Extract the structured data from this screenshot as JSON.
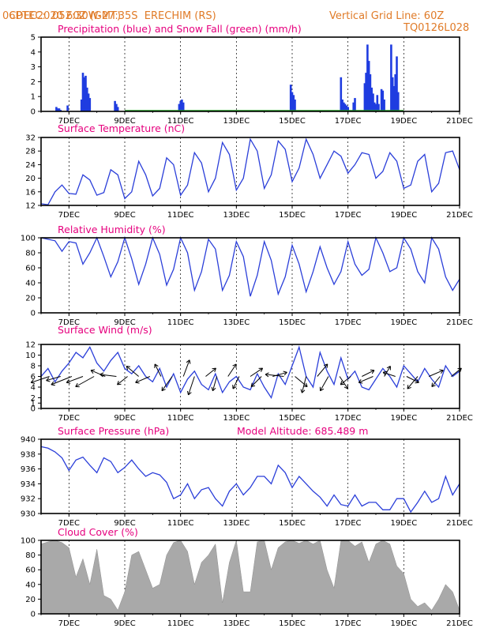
{
  "header": {
    "source": "CPTEC:",
    "coords": "052:30W-27:35S",
    "station": "ERECHIM (RS)",
    "run": "06DEC2020 60Z (GMT)",
    "grid_note": "Vertical Grid Line: 60Z",
    "model": "TQ0126L028"
  },
  "colors": {
    "line": "#2b3fd9",
    "bar": "#1f3ce0",
    "snow": "#22a022",
    "cloud": "#a9a9a9",
    "title": "#e6007e",
    "header": "#e07b28"
  },
  "x_ticks": [
    "7DEC",
    "9DEC",
    "11DEC",
    "13DEC",
    "15DEC",
    "17DEC",
    "19DEC",
    "21DEC"
  ],
  "chart_data": [
    {
      "id": "precip",
      "type": "bar",
      "title": "Precipitation (blue) and Snow Fall (green) (mm/h)",
      "ylim": [
        0,
        5
      ],
      "yticks": [
        0,
        1,
        2,
        3,
        4,
        5
      ],
      "series": [
        {
          "name": "Precipitation",
          "x": [
            6.55,
            6.6,
            6.65,
            6.7,
            6.95,
            7.45,
            7.5,
            7.55,
            7.6,
            7.65,
            7.7,
            7.75,
            8.65,
            8.7,
            8.75,
            10.95,
            11.0,
            11.05,
            11.1,
            14.95,
            15.0,
            15.05,
            15.1,
            16.75,
            16.8,
            16.85,
            16.9,
            16.95,
            17.0,
            17.2,
            17.25,
            17.6,
            17.65,
            17.7,
            17.75,
            17.8,
            17.85,
            17.9,
            17.95,
            18.0,
            18.05,
            18.1,
            18.2,
            18.25,
            18.3,
            18.55,
            18.6,
            18.65,
            18.7,
            18.75,
            18.8
          ],
          "values": [
            0.3,
            0.2,
            0.2,
            0.1,
            0.4,
            0.8,
            2.6,
            2.3,
            2.4,
            1.6,
            1.2,
            0.9,
            0.7,
            0.5,
            0.3,
            0.5,
            0.7,
            0.8,
            0.6,
            1.8,
            1.3,
            1.1,
            0.8,
            2.3,
            0.8,
            0.6,
            0.5,
            0.4,
            0.3,
            0.6,
            0.9,
            1.9,
            2.6,
            4.5,
            3.4,
            2.5,
            1.6,
            1.2,
            0.6,
            0.5,
            1.1,
            0.5,
            1.5,
            1.4,
            0.8,
            4.5,
            2.3,
            1.7,
            2.5,
            3.7,
            1.3
          ]
        }
      ]
    },
    {
      "id": "temp",
      "type": "line",
      "title": "Surface Temperature (nC)",
      "ylim": [
        12,
        32
      ],
      "yticks": [
        12,
        16,
        20,
        24,
        28,
        32
      ],
      "series": [
        {
          "name": "Temperature",
          "x": [
            6.0,
            6.25,
            6.5,
            6.75,
            7.0,
            7.25,
            7.5,
            7.75,
            8.0,
            8.25,
            8.5,
            8.75,
            9.0,
            9.25,
            9.5,
            9.75,
            10.0,
            10.25,
            10.5,
            10.75,
            11.0,
            11.25,
            11.5,
            11.75,
            12.0,
            12.25,
            12.5,
            12.75,
            13.0,
            13.25,
            13.5,
            13.75,
            14.0,
            14.25,
            14.5,
            14.75,
            15.0,
            15.25,
            15.5,
            15.75,
            16.0,
            16.25,
            16.5,
            16.75,
            17.0,
            17.25,
            17.5,
            17.75,
            18.0,
            18.25,
            18.5,
            18.75,
            19.0,
            19.25,
            19.5,
            19.75,
            20.0,
            20.25,
            20.5,
            20.75,
            21.0
          ],
          "values": [
            12.5,
            12.2,
            16.0,
            18.0,
            15.5,
            15.3,
            21.0,
            19.5,
            15.0,
            15.8,
            22.5,
            21.0,
            14.0,
            16.0,
            25.0,
            21.0,
            14.8,
            17.0,
            26.0,
            24.0,
            15.0,
            18.0,
            27.5,
            24.5,
            16.0,
            20.0,
            30.5,
            27.0,
            16.5,
            20.0,
            31.5,
            28.0,
            17.0,
            21.0,
            31.0,
            28.5,
            19.0,
            23.0,
            31.5,
            27.0,
            20.0,
            24.0,
            28.0,
            26.5,
            21.5,
            24.0,
            27.5,
            27.0,
            20.0,
            22.0,
            27.5,
            25.0,
            17.0,
            18.0,
            25.0,
            27.0,
            16.0,
            18.5,
            27.5,
            28.0,
            22.5
          ]
        }
      ]
    },
    {
      "id": "rh",
      "type": "line",
      "title": "Relative Humidity (%)",
      "ylim": [
        0,
        100
      ],
      "yticks": [
        0,
        20,
        40,
        60,
        80,
        100
      ],
      "series": [
        {
          "name": "Relative Humidity",
          "x": [
            6.0,
            6.25,
            6.5,
            6.75,
            7.0,
            7.25,
            7.5,
            7.75,
            8.0,
            8.25,
            8.5,
            8.75,
            9.0,
            9.25,
            9.5,
            9.75,
            10.0,
            10.25,
            10.5,
            10.75,
            11.0,
            11.25,
            11.5,
            11.75,
            12.0,
            12.25,
            12.5,
            12.75,
            13.0,
            13.25,
            13.5,
            13.75,
            14.0,
            14.25,
            14.5,
            14.75,
            15.0,
            15.25,
            15.5,
            15.75,
            16.0,
            16.25,
            16.5,
            16.75,
            17.0,
            17.25,
            17.5,
            17.75,
            18.0,
            18.25,
            18.5,
            18.75,
            19.0,
            19.25,
            19.5,
            19.75,
            20.0,
            20.25,
            20.5,
            20.75,
            21.0
          ],
          "values": [
            100,
            98,
            96,
            82,
            95,
            93,
            65,
            80,
            100,
            75,
            48,
            68,
            100,
            72,
            38,
            65,
            100,
            78,
            37,
            58,
            100,
            80,
            30,
            55,
            98,
            85,
            30,
            50,
            95,
            75,
            22,
            50,
            95,
            70,
            25,
            48,
            90,
            65,
            28,
            55,
            88,
            60,
            38,
            55,
            95,
            65,
            50,
            58,
            100,
            80,
            55,
            60,
            100,
            85,
            55,
            40,
            100,
            85,
            48,
            30,
            45
          ]
        }
      ]
    },
    {
      "id": "wind",
      "type": "line",
      "title": "Surface Wind (m/s)",
      "ylim": [
        0,
        12
      ],
      "yticks": [
        0,
        1,
        2,
        4,
        6,
        8,
        10,
        12
      ],
      "series": [
        {
          "name": "Wind speed",
          "x": [
            6.0,
            6.25,
            6.5,
            6.75,
            7.0,
            7.25,
            7.5,
            7.75,
            8.0,
            8.25,
            8.5,
            8.75,
            9.0,
            9.25,
            9.5,
            9.75,
            10.0,
            10.25,
            10.5,
            10.75,
            11.0,
            11.25,
            11.5,
            11.75,
            12.0,
            12.25,
            12.5,
            12.75,
            13.0,
            13.25,
            13.5,
            13.75,
            14.0,
            14.25,
            14.5,
            14.75,
            15.0,
            15.25,
            15.5,
            15.75,
            16.0,
            16.25,
            16.5,
            16.75,
            17.0,
            17.25,
            17.5,
            17.75,
            18.0,
            18.25,
            18.5,
            18.75,
            19.0,
            19.25,
            19.5,
            19.75,
            20.0,
            20.25,
            20.5,
            20.75,
            21.0
          ],
          "values": [
            6.0,
            7.5,
            5.0,
            7.0,
            8.5,
            10.5,
            9.5,
            11.5,
            8.5,
            7.0,
            9.0,
            10.5,
            7.5,
            6.5,
            8.0,
            6.0,
            5.0,
            7.5,
            4.0,
            6.5,
            3.0,
            5.5,
            7.0,
            4.5,
            3.5,
            6.5,
            3.0,
            5.0,
            6.0,
            4.0,
            3.5,
            6.5,
            4.0,
            2.0,
            6.5,
            4.5,
            8.0,
            11.5,
            6.0,
            4.0,
            10.5,
            7.0,
            4.5,
            9.5,
            5.5,
            7.0,
            4.0,
            3.5,
            5.5,
            7.5,
            6.0,
            4.0,
            8.0,
            6.5,
            5.0,
            7.5,
            5.5,
            4.0,
            8.0,
            6.0,
            7.0
          ]
        }
      ],
      "wind_vectors": [
        {
          "x": 6.3,
          "u": -0.9,
          "v": -0.3
        },
        {
          "x": 6.7,
          "u": -0.7,
          "v": -0.2
        },
        {
          "x": 7.1,
          "u": -1.0,
          "v": -0.4
        },
        {
          "x": 7.5,
          "u": -0.8,
          "v": -0.3
        },
        {
          "x": 7.9,
          "u": -0.9,
          "v": -0.5
        },
        {
          "x": 8.3,
          "u": -0.7,
          "v": 0.3
        },
        {
          "x": 8.7,
          "u": -0.8,
          "v": 0.1
        },
        {
          "x": 9.1,
          "u": -0.5,
          "v": -0.4
        },
        {
          "x": 9.5,
          "u": -0.6,
          "v": 0.5
        },
        {
          "x": 9.9,
          "u": -0.7,
          "v": -0.3
        },
        {
          "x": 10.3,
          "u": -0.3,
          "v": 0.6
        },
        {
          "x": 10.7,
          "u": -0.5,
          "v": -0.7
        },
        {
          "x": 11.1,
          "u": 0.3,
          "v": 0.8
        },
        {
          "x": 11.5,
          "u": -0.3,
          "v": -0.9
        },
        {
          "x": 11.9,
          "u": 0.5,
          "v": 0.4
        },
        {
          "x": 12.3,
          "u": -0.2,
          "v": -0.7
        },
        {
          "x": 12.7,
          "u": 0.4,
          "v": 0.6
        },
        {
          "x": 13.1,
          "u": -0.3,
          "v": -0.6
        },
        {
          "x": 13.5,
          "u": 0.6,
          "v": 0.4
        },
        {
          "x": 13.9,
          "u": -0.5,
          "v": -0.5
        },
        {
          "x": 14.3,
          "u": 0.7,
          "v": 0.2
        },
        {
          "x": 14.7,
          "u": -0.9,
          "v": 0.1
        },
        {
          "x": 15.1,
          "u": 0.6,
          "v": -0.5
        },
        {
          "x": 15.5,
          "u": -0.2,
          "v": -0.8
        },
        {
          "x": 15.9,
          "u": 0.5,
          "v": 0.6
        },
        {
          "x": 16.3,
          "u": -0.4,
          "v": -0.7
        },
        {
          "x": 16.7,
          "u": 0.4,
          "v": -0.6
        },
        {
          "x": 17.1,
          "u": -0.5,
          "v": -0.4
        },
        {
          "x": 17.5,
          "u": 0.6,
          "v": 0.3
        },
        {
          "x": 17.9,
          "u": -0.7,
          "v": -0.3
        },
        {
          "x": 18.3,
          "u": 0.3,
          "v": 0.5
        },
        {
          "x": 18.7,
          "u": -0.6,
          "v": 0.2
        },
        {
          "x": 19.1,
          "u": 0.6,
          "v": -0.3
        },
        {
          "x": 19.5,
          "u": -0.5,
          "v": -0.6
        },
        {
          "x": 19.9,
          "u": 0.7,
          "v": 0.3
        },
        {
          "x": 20.3,
          "u": -0.4,
          "v": -0.5
        },
        {
          "x": 20.7,
          "u": 0.5,
          "v": 0.4
        }
      ]
    },
    {
      "id": "pressure",
      "type": "line",
      "title": "Surface Pressure (hPa)",
      "subtitle": "Model Altitude: 685.489 m",
      "ylim": [
        930,
        940
      ],
      "yticks": [
        930,
        932,
        934,
        936,
        938,
        940
      ],
      "series": [
        {
          "name": "Pressure",
          "x": [
            6.0,
            6.25,
            6.5,
            6.75,
            7.0,
            7.25,
            7.5,
            7.75,
            8.0,
            8.25,
            8.5,
            8.75,
            9.0,
            9.25,
            9.5,
            9.75,
            10.0,
            10.25,
            10.5,
            10.75,
            11.0,
            11.25,
            11.5,
            11.75,
            12.0,
            12.25,
            12.5,
            12.75,
            13.0,
            13.25,
            13.5,
            13.75,
            14.0,
            14.25,
            14.5,
            14.75,
            15.0,
            15.25,
            15.5,
            15.75,
            16.0,
            16.25,
            16.5,
            16.75,
            17.0,
            17.25,
            17.5,
            17.75,
            18.0,
            18.25,
            18.5,
            18.75,
            19.0,
            19.25,
            19.5,
            19.75,
            20.0,
            20.25,
            20.5,
            20.75,
            21.0
          ],
          "values": [
            939.0,
            938.8,
            938.3,
            937.5,
            935.8,
            937.2,
            937.6,
            936.5,
            935.5,
            937.5,
            937.0,
            935.5,
            936.2,
            937.2,
            936.0,
            935.0,
            935.5,
            935.2,
            934.2,
            932.0,
            932.5,
            934.0,
            932.0,
            933.2,
            933.5,
            932.0,
            931.0,
            933.0,
            934.0,
            932.5,
            933.5,
            935.0,
            935.0,
            934.0,
            936.5,
            935.5,
            933.5,
            935.0,
            934.0,
            933.0,
            932.2,
            931.0,
            932.5,
            931.2,
            931.0,
            932.5,
            931.0,
            931.5,
            931.5,
            930.5,
            930.5,
            932.0,
            932.0,
            930.2,
            931.5,
            933.0,
            931.5,
            932.0,
            935.0,
            932.5,
            934.0
          ]
        }
      ]
    },
    {
      "id": "cloud",
      "type": "area",
      "title": "Cloud Cover (%)",
      "ylim": [
        0,
        100
      ],
      "yticks": [
        0,
        20,
        40,
        60,
        80,
        100
      ],
      "series": [
        {
          "name": "Cloud Cover",
          "x": [
            6.0,
            6.25,
            6.5,
            6.75,
            7.0,
            7.25,
            7.5,
            7.75,
            8.0,
            8.25,
            8.5,
            8.75,
            9.0,
            9.25,
            9.5,
            9.75,
            10.0,
            10.25,
            10.5,
            10.75,
            11.0,
            11.25,
            11.5,
            11.75,
            12.0,
            12.25,
            12.5,
            12.75,
            13.0,
            13.25,
            13.5,
            13.75,
            14.0,
            14.25,
            14.5,
            14.75,
            15.0,
            15.25,
            15.5,
            15.75,
            16.0,
            16.25,
            16.5,
            16.75,
            17.0,
            17.25,
            17.5,
            17.75,
            18.0,
            18.25,
            18.5,
            18.75,
            19.0,
            19.25,
            19.5,
            19.75,
            20.0,
            20.25,
            20.5,
            20.75,
            21.0
          ],
          "values": [
            95,
            98,
            100,
            97,
            90,
            50,
            75,
            40,
            88,
            25,
            20,
            5,
            30,
            80,
            85,
            60,
            35,
            40,
            80,
            97,
            100,
            85,
            40,
            70,
            80,
            95,
            15,
            70,
            100,
            30,
            30,
            98,
            100,
            60,
            90,
            98,
            100,
            96,
            100,
            95,
            100,
            60,
            35,
            99,
            100,
            92,
            98,
            70,
            95,
            100,
            95,
            65,
            55,
            20,
            10,
            15,
            5,
            20,
            40,
            30,
            5
          ]
        }
      ]
    }
  ]
}
